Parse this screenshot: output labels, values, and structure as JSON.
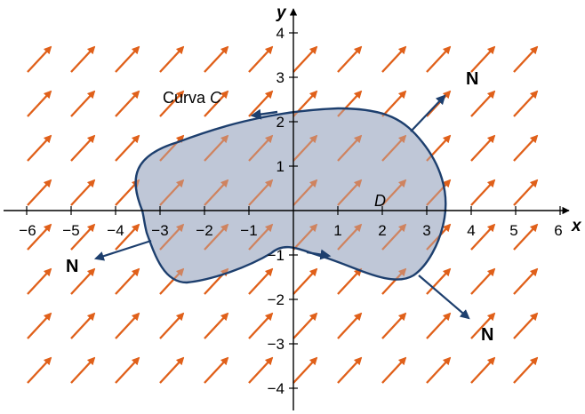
{
  "axes": {
    "x_label": "x",
    "y_label": "y",
    "x_ticks": [
      "−6",
      "−5",
      "−4",
      "−3",
      "−2",
      "−1",
      "1",
      "2",
      "3",
      "4",
      "5",
      "6"
    ],
    "x_tick_values": [
      -6,
      -5,
      -4,
      -3,
      -2,
      -1,
      1,
      2,
      3,
      4,
      5,
      6
    ],
    "y_ticks": [
      "4",
      "3",
      "2",
      "1",
      "−1",
      "−2",
      "−3",
      "−4"
    ],
    "y_tick_values": [
      4,
      3,
      2,
      1,
      -1,
      -2,
      -3,
      -4
    ]
  },
  "curve_label": {
    "prefix": "Curva ",
    "name": "C"
  },
  "region_label": "D",
  "normal_labels": [
    "N",
    "N",
    "N"
  ],
  "colors": {
    "field_arrow": "#e0601a",
    "region_fill": "#b4bdd0",
    "curve_stroke": "#1d3f6e",
    "axis": "#000000"
  }
}
